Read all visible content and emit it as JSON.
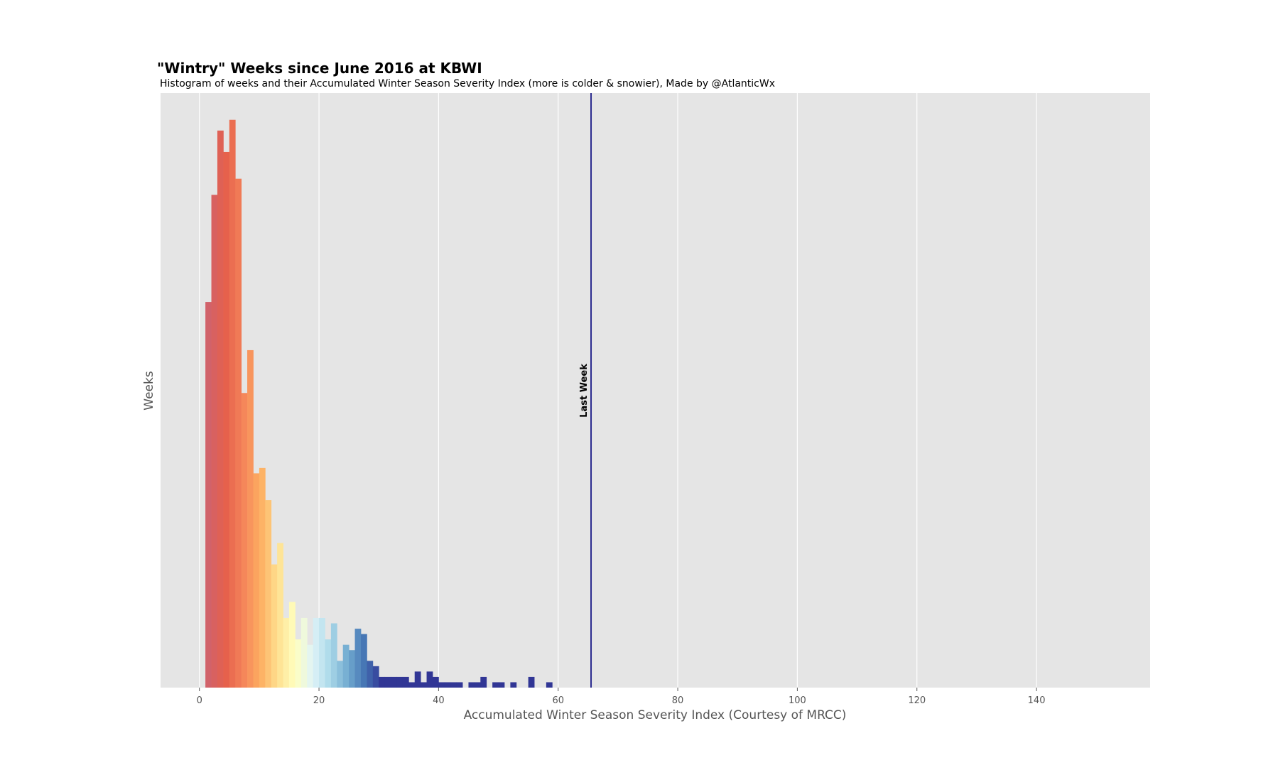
{
  "chart_data": {
    "type": "bar",
    "title": "\"Wintry\" Weeks since June 2016 at KBWI",
    "subtitle": "Histogram of weeks and their Accumulated Winter Season Severity Index (more is colder & snowier), Made by @AtlanticWx",
    "xlabel": "Accumulated Winter Season Severity Index (Courtesy of MRCC)",
    "ylabel": "Weeks",
    "xlim": [
      -6.5,
      159
    ],
    "ylim": [
      0,
      111
    ],
    "xticks": [
      0,
      20,
      40,
      60,
      80,
      100,
      120,
      140
    ],
    "yticks_shown": false,
    "grid": true,
    "bin_width": 1,
    "bins": [
      {
        "x": 1,
        "count": 72.0
      },
      {
        "x": 2,
        "count": 92.0
      },
      {
        "x": 3,
        "count": 104.0
      },
      {
        "x": 4,
        "count": 100.0
      },
      {
        "x": 5,
        "count": 106.0
      },
      {
        "x": 6,
        "count": 95.0
      },
      {
        "x": 7,
        "count": 55.0
      },
      {
        "x": 8,
        "count": 63.0
      },
      {
        "x": 9,
        "count": 40.0
      },
      {
        "x": 10,
        "count": 41.0
      },
      {
        "x": 11,
        "count": 35.0
      },
      {
        "x": 12,
        "count": 23.0
      },
      {
        "x": 13,
        "count": 27.0
      },
      {
        "x": 14,
        "count": 13.0
      },
      {
        "x": 15,
        "count": 16.0
      },
      {
        "x": 16,
        "count": 9.0
      },
      {
        "x": 17,
        "count": 13.0
      },
      {
        "x": 18,
        "count": 8.0
      },
      {
        "x": 19,
        "count": 13.0
      },
      {
        "x": 20,
        "count": 13.0
      },
      {
        "x": 21,
        "count": 9.0
      },
      {
        "x": 22,
        "count": 12.0
      },
      {
        "x": 23,
        "count": 5.0
      },
      {
        "x": 24,
        "count": 8.0
      },
      {
        "x": 25,
        "count": 7.0
      },
      {
        "x": 26,
        "count": 11.0
      },
      {
        "x": 27,
        "count": 10.0
      },
      {
        "x": 28,
        "count": 5.0
      },
      {
        "x": 29,
        "count": 4.0
      },
      {
        "x": 30,
        "count": 2.0
      },
      {
        "x": 31,
        "count": 2.0
      },
      {
        "x": 32,
        "count": 2.0
      },
      {
        "x": 33,
        "count": 2.0
      },
      {
        "x": 34,
        "count": 2.0
      },
      {
        "x": 35,
        "count": 1.0
      },
      {
        "x": 36,
        "count": 3.0
      },
      {
        "x": 37,
        "count": 1.0
      },
      {
        "x": 38,
        "count": 3.0
      },
      {
        "x": 39,
        "count": 2.0
      },
      {
        "x": 40,
        "count": 1.0
      },
      {
        "x": 41,
        "count": 1.0
      },
      {
        "x": 42,
        "count": 1.0
      },
      {
        "x": 43,
        "count": 1.0
      },
      {
        "x": 45,
        "count": 1.0
      },
      {
        "x": 46,
        "count": 1.0
      },
      {
        "x": 47,
        "count": 2.0
      },
      {
        "x": 49,
        "count": 1.0
      },
      {
        "x": 50,
        "count": 1.0
      },
      {
        "x": 52,
        "count": 1.0
      },
      {
        "x": 55,
        "count": 2.0
      },
      {
        "x": 58,
        "count": 1.0
      }
    ],
    "colormap_stops": [
      "#d1626a",
      "#e5604c",
      "#f4845a",
      "#fdae61",
      "#fee090",
      "#ffffbf",
      "#e0f3f8",
      "#abd9e9",
      "#74add1",
      "#4575b4",
      "#313695"
    ],
    "colormap_range": [
      1,
      30
    ],
    "reference_line": {
      "x": 65.5,
      "label": "Last Week",
      "color": "#2b2b8f"
    },
    "plot_background": "#e5e5e5",
    "grid_color": "#ffffff"
  }
}
